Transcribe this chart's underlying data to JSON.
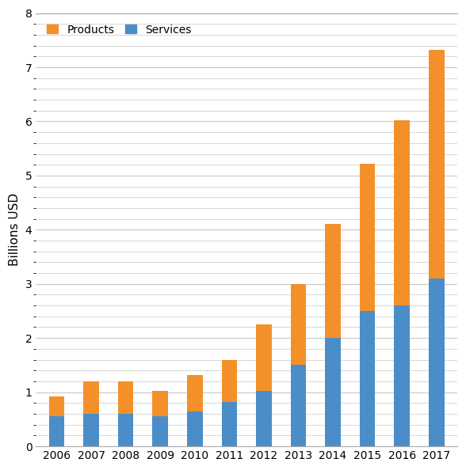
{
  "years": [
    "2006",
    "2007",
    "2008",
    "2009",
    "2010",
    "2011",
    "2012",
    "2013",
    "2014",
    "2015",
    "2016",
    "2017"
  ],
  "services": [
    0.55,
    0.6,
    0.6,
    0.55,
    0.65,
    0.82,
    1.02,
    1.5,
    2.0,
    2.5,
    2.6,
    3.1
  ],
  "total": [
    0.92,
    1.2,
    1.2,
    1.02,
    1.32,
    1.6,
    2.25,
    3.0,
    4.1,
    5.22,
    6.02,
    7.32
  ],
  "products_color": "#F4902A",
  "services_color": "#4B8DC8",
  "ylabel": "Billions USD",
  "ylim": [
    0,
    8
  ],
  "yticks": [
    0,
    1,
    2,
    3,
    4,
    5,
    6,
    7,
    8
  ],
  "legend_products": "Products",
  "legend_services": "Services",
  "bg_color": "#FFFFFF",
  "grid_color": "#C8C8C8",
  "bar_width": 0.45
}
